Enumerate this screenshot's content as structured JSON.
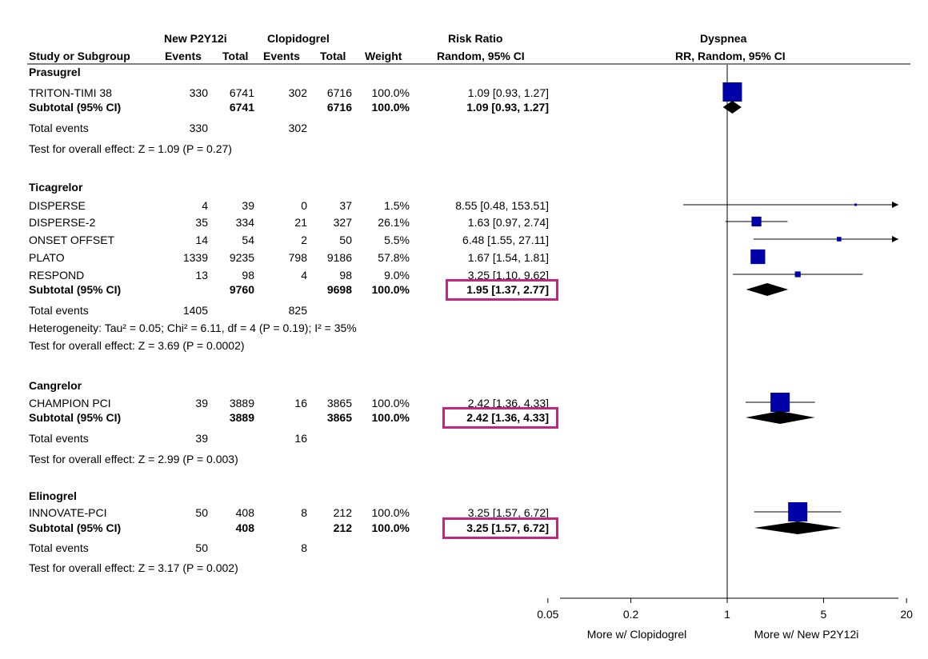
{
  "header": {
    "study": "Study or Subgroup",
    "new_group": "New P2Y12i",
    "ctrl_group": "Clopidogrel",
    "events": "Events",
    "total": "Total",
    "weight": "Weight",
    "rr_title": "Risk Ratio",
    "rr_method": "Random, 95% CI",
    "plot_title": "Dyspnea",
    "plot_method": "RR, Random, 95% CI"
  },
  "groups": [
    {
      "name": "Prasugrel",
      "studies": [
        {
          "name": "TRITON-TIMI 38",
          "ne": "330",
          "nt": "6741",
          "ce": "302",
          "ct": "6716",
          "w": "100.0%",
          "ci": "1.09 [0.93, 1.27]"
        }
      ],
      "subtotal": {
        "label": "Subtotal (95% CI)",
        "nt": "6741",
        "ct": "6716",
        "w": "100.0%",
        "ci": "1.09 [0.93, 1.27]"
      },
      "total_events": {
        "label": "Total events",
        "ne": "330",
        "ce": "302"
      },
      "heterogeneity": "",
      "overall": "Test for overall effect: Z = 1.09 (P = 0.27)"
    },
    {
      "name": "Ticagrelor",
      "studies": [
        {
          "name": "DISPERSE",
          "ne": "4",
          "nt": "39",
          "ce": "0",
          "ct": "37",
          "w": "1.5%",
          "ci": "8.55 [0.48, 153.51]"
        },
        {
          "name": "DISPERSE-2",
          "ne": "35",
          "nt": "334",
          "ce": "21",
          "ct": "327",
          "w": "26.1%",
          "ci": "1.63 [0.97, 2.74]"
        },
        {
          "name": "ONSET OFFSET",
          "ne": "14",
          "nt": "54",
          "ce": "2",
          "ct": "50",
          "w": "5.5%",
          "ci": "6.48 [1.55, 27.11]"
        },
        {
          "name": "PLATO",
          "ne": "1339",
          "nt": "9235",
          "ce": "798",
          "ct": "9186",
          "w": "57.8%",
          "ci": "1.67 [1.54, 1.81]"
        },
        {
          "name": "RESPOND",
          "ne": "13",
          "nt": "98",
          "ce": "4",
          "ct": "98",
          "w": "9.0%",
          "ci": "3.25 [1.10, 9.62]"
        }
      ],
      "subtotal": {
        "label": "Subtotal (95% CI)",
        "nt": "9760",
        "ct": "9698",
        "w": "100.0%",
        "ci": "1.95 [1.37, 2.77]"
      },
      "total_events": {
        "label": "Total events",
        "ne": "1405",
        "ce": "825"
      },
      "heterogeneity": "Heterogeneity: Tau² = 0.05; Chi² = 6.11, df = 4 (P = 0.19); I² = 35%",
      "overall": "Test for overall effect: Z = 3.69 (P = 0.0002)"
    },
    {
      "name": "Cangrelor",
      "studies": [
        {
          "name": "CHAMPION PCI",
          "ne": "39",
          "nt": "3889",
          "ce": "16",
          "ct": "3865",
          "w": "100.0%",
          "ci": "2.42 [1.36, 4.33]"
        }
      ],
      "subtotal": {
        "label": "Subtotal (95% CI)",
        "nt": "3889",
        "ct": "3865",
        "w": "100.0%",
        "ci": "2.42 [1.36, 4.33]"
      },
      "total_events": {
        "label": "Total events",
        "ne": "39",
        "ce": "16"
      },
      "heterogeneity": "",
      "overall": "Test for overall effect: Z = 2.99 (P = 0.003)"
    },
    {
      "name": "Elinogrel",
      "studies": [
        {
          "name": "INNOVATE-PCI",
          "ne": "50",
          "nt": "408",
          "ce": "8",
          "ct": "212",
          "w": "100.0%",
          "ci": "3.25 [1.57, 6.72]"
        }
      ],
      "subtotal": {
        "label": "Subtotal (95% CI)",
        "nt": "408",
        "ct": "212",
        "w": "100.0%",
        "ci": "3.25 [1.57, 6.72]"
      },
      "total_events": {
        "label": "Total events",
        "ne": "50",
        "ce": "8"
      },
      "heterogeneity": "",
      "overall": "Test for overall effect: Z = 3.17 (P = 0.002)"
    }
  ],
  "chart_data": {
    "type": "forest",
    "title": "Dyspnea",
    "subtitle": "RR, Random, 95% CI",
    "x_scale": "log",
    "xlim": [
      0.05,
      20
    ],
    "reference_line": 1,
    "ticks": [
      0.05,
      0.2,
      1,
      5,
      20
    ],
    "tick_labels": [
      "0.05",
      "0.2",
      "1",
      "5",
      "20"
    ],
    "left_label": "More w/ Clopidogrel",
    "right_label": "More w/ New P2Y12i",
    "highlighted_subtotals": [
      "Ticagrelor",
      "Cangrelor",
      "Elinogrel"
    ],
    "colors": {
      "point": "#0000a8",
      "diamond": "#000000",
      "highlight": "#c2277e"
    },
    "groups": [
      {
        "name": "Prasugrel",
        "studies": [
          {
            "name": "TRITON-TIMI 38",
            "rr": 1.09,
            "lo": 0.93,
            "hi": 1.27,
            "weight": 100.0
          }
        ],
        "subtotal": {
          "rr": 1.09,
          "lo": 0.93,
          "hi": 1.27
        }
      },
      {
        "name": "Ticagrelor",
        "studies": [
          {
            "name": "DISPERSE",
            "rr": 8.55,
            "lo": 0.48,
            "hi": 153.51,
            "weight": 1.5
          },
          {
            "name": "DISPERSE-2",
            "rr": 1.63,
            "lo": 0.97,
            "hi": 2.74,
            "weight": 26.1
          },
          {
            "name": "ONSET OFFSET",
            "rr": 6.48,
            "lo": 1.55,
            "hi": 27.11,
            "weight": 5.5
          },
          {
            "name": "PLATO",
            "rr": 1.67,
            "lo": 1.54,
            "hi": 1.81,
            "weight": 57.8
          },
          {
            "name": "RESPOND",
            "rr": 3.25,
            "lo": 1.1,
            "hi": 9.62,
            "weight": 9.0
          }
        ],
        "subtotal": {
          "rr": 1.95,
          "lo": 1.37,
          "hi": 2.77
        }
      },
      {
        "name": "Cangrelor",
        "studies": [
          {
            "name": "CHAMPION PCI",
            "rr": 2.42,
            "lo": 1.36,
            "hi": 4.33,
            "weight": 100.0
          }
        ],
        "subtotal": {
          "rr": 2.42,
          "lo": 1.36,
          "hi": 4.33
        }
      },
      {
        "name": "Elinogrel",
        "studies": [
          {
            "name": "INNOVATE-PCI",
            "rr": 3.25,
            "lo": 1.57,
            "hi": 6.72,
            "weight": 100.0
          }
        ],
        "subtotal": {
          "rr": 3.25,
          "lo": 1.57,
          "hi": 6.72
        }
      }
    ]
  }
}
